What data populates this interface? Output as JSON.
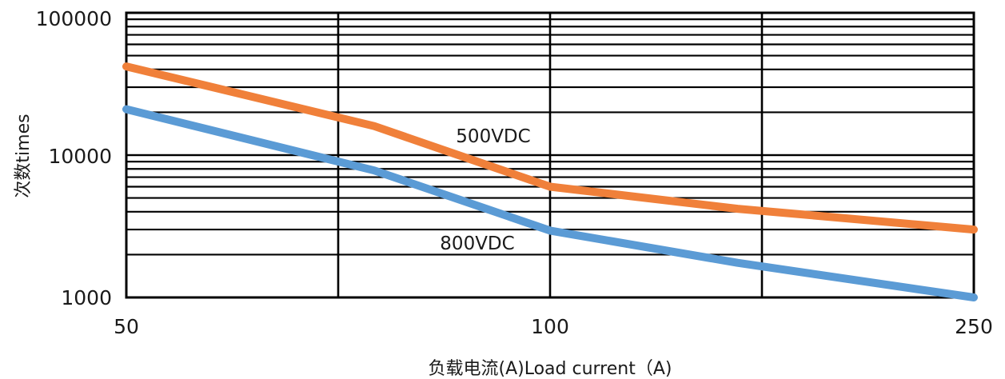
{
  "chart_data": {
    "type": "line",
    "title": "",
    "xlabel": "负载电流(A)Load current（A)",
    "ylabel": "次数times",
    "x_scale": "log",
    "y_scale": "log",
    "x_ticks": [
      "50",
      "100",
      "250"
    ],
    "y_ticks": [
      "100000",
      "10000",
      "1000"
    ],
    "xlim": [
      50,
      250
    ],
    "ylim": [
      1000,
      100000
    ],
    "grid": true,
    "series": [
      {
        "name": "500VDC",
        "color": "#f0803a",
        "points": [
          [
            50,
            42000
          ],
          [
            75,
            16000
          ],
          [
            100,
            6000
          ],
          [
            150,
            4200
          ],
          [
            250,
            3000
          ]
        ]
      },
      {
        "name": "800VDC",
        "color": "#5b9bd5",
        "points": [
          [
            50,
            21000
          ],
          [
            75,
            7800
          ],
          [
            100,
            2950
          ],
          [
            150,
            1750
          ],
          [
            250,
            1000
          ]
        ]
      }
    ]
  }
}
